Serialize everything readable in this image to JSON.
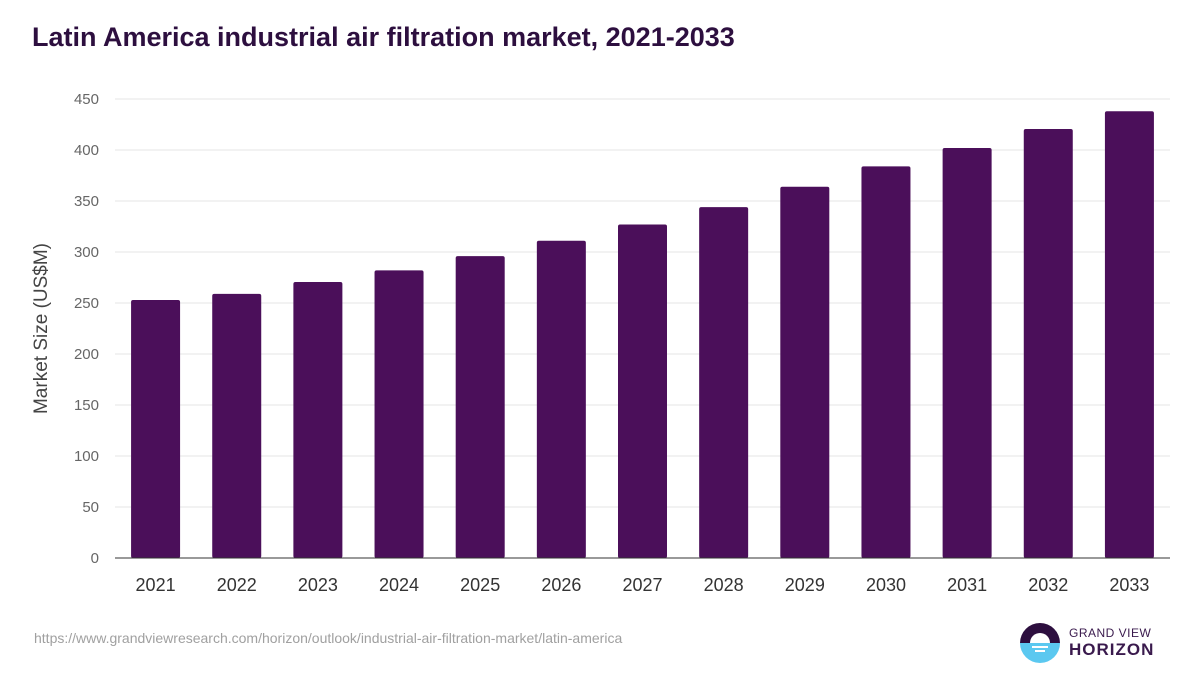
{
  "chart_data": {
    "type": "bar",
    "title": "Latin America industrial air filtration market, 2021-2033",
    "xlabel": "",
    "ylabel": "Market Size (US$M)",
    "ylim": [
      0,
      450
    ],
    "yticks": [
      0,
      50,
      100,
      150,
      200,
      250,
      300,
      350,
      400,
      450
    ],
    "grid": true,
    "categories": [
      "2021",
      "2022",
      "2023",
      "2024",
      "2025",
      "2026",
      "2027",
      "2028",
      "2029",
      "2030",
      "2031",
      "2032",
      "2033"
    ],
    "values": [
      253,
      259,
      270.6,
      282,
      296,
      311,
      327,
      344,
      364,
      384,
      402,
      420.6,
      438
    ],
    "bar_color": "#4b0f5a"
  },
  "source": "https://www.grandviewresearch.com/horizon/outlook/industrial-air-filtration-market/latin-america",
  "logo": {
    "line1": "GRAND VIEW",
    "line2": "HORIZON",
    "dark": "#2d0f3f",
    "light": "#5bc8f0"
  }
}
